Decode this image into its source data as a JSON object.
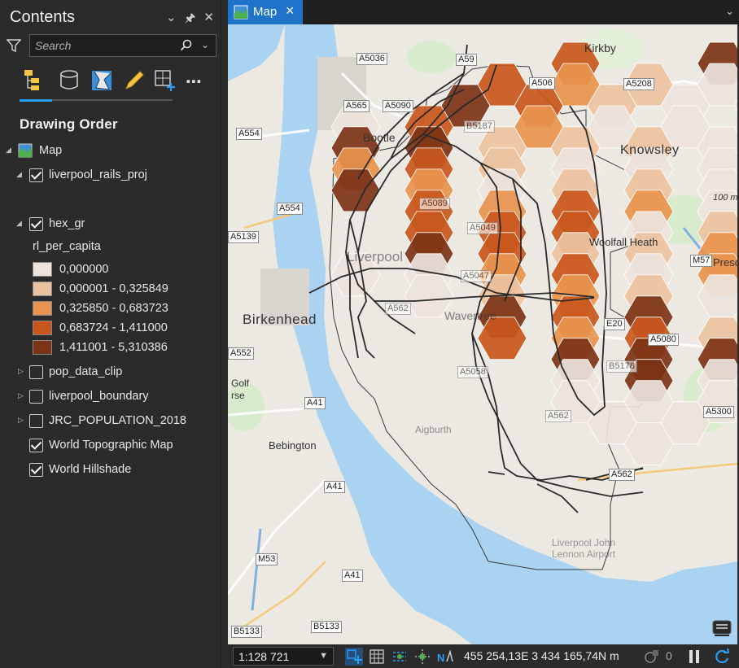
{
  "contents": {
    "title": "Contents",
    "search_placeholder": "Search",
    "section": "Drawing Order",
    "map_label": "Map",
    "layers": [
      {
        "label": "liverpool_rails_proj",
        "checked": true,
        "expanded": true
      },
      {
        "label": "hex_gr",
        "checked": true,
        "expanded": true
      },
      {
        "label": "pop_data_clip",
        "checked": false,
        "expanded": false
      },
      {
        "label": "liverpool_boundary",
        "checked": false,
        "expanded": false
      },
      {
        "label": "JRC_POPULATION_2018",
        "checked": false,
        "expanded": false
      },
      {
        "label": "World Topographic Map",
        "checked": true
      },
      {
        "label": "World Hillshade",
        "checked": true
      }
    ],
    "legend": {
      "field": "rl_per_capita",
      "classes": [
        {
          "label": "0,000000",
          "color": "#ece3dc"
        },
        {
          "label": "0,000001 - 0,325849",
          "color": "#ebc29f"
        },
        {
          "label": "0,325850 - 0,683723",
          "color": "#e8944e"
        },
        {
          "label": "0,683724 - 1,411000",
          "color": "#c9571d"
        },
        {
          "label": "1,411001 - 5,310386",
          "color": "#7c3316"
        }
      ]
    }
  },
  "map_tab": {
    "label": "Map"
  },
  "map": {
    "places": [
      "Kirkby",
      "Bootle",
      "Knowsley",
      "Woolfall Heath",
      "Liverpool",
      "Birkenhead",
      "Wavertree",
      "Bebington",
      "Aigburth",
      "Liverpool John Lennon Airport",
      "Presc",
      "100 m",
      "Golf",
      "rse"
    ],
    "roads": [
      "A5036",
      "A59",
      "A565",
      "A5090",
      "A506",
      "A5208",
      "A554",
      "B5187",
      "A5089",
      "A554",
      "A5139",
      "A5049",
      "A5047",
      "A562",
      "M57",
      "E20",
      "A5080",
      "A552",
      "A5058",
      "B5178",
      "A41",
      "A562",
      "A5300",
      "A562",
      "A41",
      "M53",
      "A41",
      "B5133",
      "B5133"
    ]
  },
  "status": {
    "scale": "1:128 721",
    "coords": "455 254,13E 3 434 165,74N m",
    "pending": "0"
  }
}
